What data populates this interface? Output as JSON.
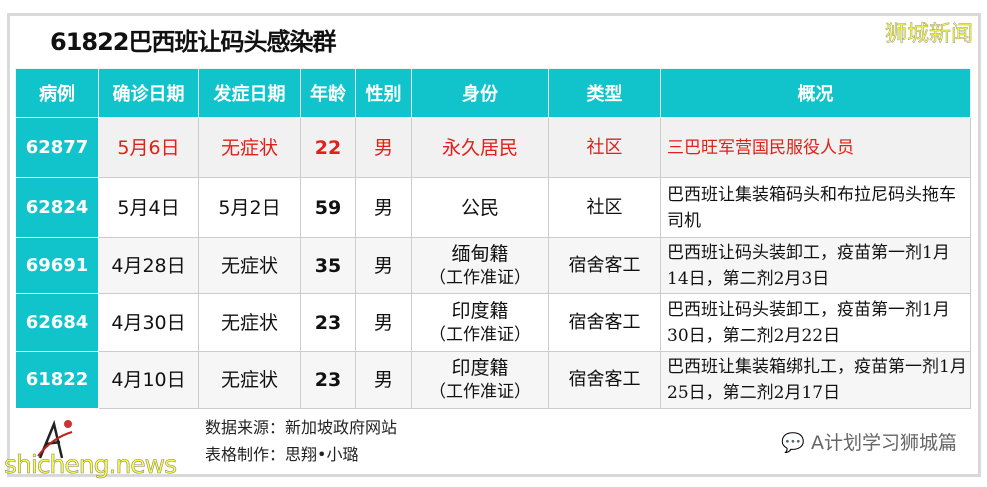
{
  "title": "61822巴西班让码头感染群",
  "brand": "狮城新闻",
  "headers": [
    "病例",
    "确诊日期",
    "发症日期",
    "年龄",
    "性别",
    "身份",
    "类型",
    "概况"
  ],
  "rows": [
    {
      "id": "62877",
      "confirmed": "5月6日",
      "onset": "无症状",
      "age": "22",
      "sex": "男",
      "status": "永久居民",
      "status_note": "",
      "type": "社区",
      "summary": "三巴旺军营国民服役人员"
    },
    {
      "id": "62824",
      "confirmed": "5月4日",
      "onset": "5月2日",
      "age": "59",
      "sex": "男",
      "status": "公民",
      "status_note": "",
      "type": "社区",
      "summary": "巴西班让集装箱码头和布拉尼码头拖车司机"
    },
    {
      "id": "69691",
      "confirmed": "4月28日",
      "onset": "无症状",
      "age": "35",
      "sex": "男",
      "status": "缅甸籍",
      "status_note": "（工作准证）",
      "type": "宿舍客工",
      "summary": "巴西班让码头装卸工，疫苗第一剂1月14日，第二剂2月3日"
    },
    {
      "id": "62684",
      "confirmed": "4月30日",
      "onset": "无症状",
      "age": "23",
      "sex": "男",
      "status": "印度籍",
      "status_note": "（工作准证）",
      "type": "宿舍客工",
      "summary": "巴西班让码头装卸工，疫苗第一剂1月30日，第二剂2月22日"
    },
    {
      "id": "61822",
      "confirmed": "4月10日",
      "onset": "无症状",
      "age": "23",
      "sex": "男",
      "status": "印度籍",
      "status_note": "（工作准证）",
      "type": "宿舍客工",
      "summary": "巴西班让集装箱绑扎工，疫苗第一剂1月25日，第二剂2月17日"
    }
  ],
  "footer": {
    "source": "数据来源：新加坡政府网站",
    "author": "表格制作：思翔•小璐",
    "wechat": "A计划学习狮城篇",
    "logo_text": "学习狮城篇",
    "site": "shicheng.news"
  },
  "colors": {
    "header": "#11c4cc",
    "highlight_text": "#e0201a"
  }
}
